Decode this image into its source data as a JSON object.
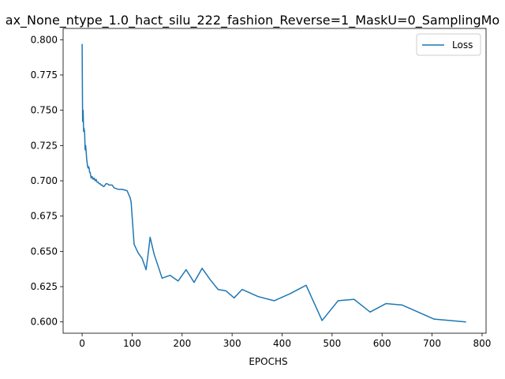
{
  "chart_data": {
    "type": "line",
    "title": "ax_None_ntype_1.0_hact_silu_222_fashion_Reverse=1_MaskU=0_SamplingMo",
    "xlabel": "EPOCHS",
    "ylabel": "",
    "xlim": [
      -38,
      808
    ],
    "ylim": [
      0.592,
      0.808
    ],
    "xticks": [
      0,
      100,
      200,
      300,
      400,
      500,
      600,
      700,
      800
    ],
    "xtick_labels": [
      "0",
      "100",
      "200",
      "300",
      "400",
      "500",
      "600",
      "700",
      "800"
    ],
    "yticks": [
      0.6,
      0.625,
      0.65,
      0.675,
      0.7,
      0.725,
      0.75,
      0.775,
      0.8
    ],
    "ytick_labels": [
      "0.600",
      "0.625",
      "0.650",
      "0.675",
      "0.700",
      "0.725",
      "0.750",
      "0.775",
      "0.800"
    ],
    "grid": false,
    "legend_position": "top-right",
    "series": [
      {
        "name": "Loss",
        "color": "#1f77b4",
        "x": [
          0,
          1,
          2,
          3,
          4,
          5,
          6,
          7,
          8,
          9,
          10,
          11,
          12,
          13,
          14,
          15,
          16,
          17,
          18,
          20,
          22,
          24,
          26,
          28,
          30,
          32,
          34,
          36,
          38,
          40,
          42,
          44,
          46,
          48,
          50,
          54,
          58,
          60,
          64,
          72,
          80,
          90,
          96,
          98,
          100,
          104,
          112,
          120,
          128,
          132,
          136,
          144,
          160,
          176,
          192,
          208,
          224,
          240,
          256,
          272,
          288,
          304,
          320,
          352,
          384,
          416,
          448,
          480,
          512,
          544,
          576,
          608,
          640,
          672,
          704,
          768
        ],
        "values": [
          0.797,
          0.742,
          0.75,
          0.735,
          0.737,
          0.734,
          0.722,
          0.725,
          0.721,
          0.716,
          0.713,
          0.71,
          0.709,
          0.71,
          0.709,
          0.706,
          0.706,
          0.704,
          0.702,
          0.703,
          0.701,
          0.702,
          0.7,
          0.701,
          0.699,
          0.699,
          0.698,
          0.698,
          0.697,
          0.697,
          0.696,
          0.696,
          0.697,
          0.698,
          0.698,
          0.697,
          0.697,
          0.697,
          0.695,
          0.694,
          0.694,
          0.693,
          0.688,
          0.685,
          0.675,
          0.655,
          0.649,
          0.645,
          0.637,
          0.648,
          0.66,
          0.648,
          0.631,
          0.633,
          0.629,
          0.637,
          0.628,
          0.638,
          0.63,
          0.623,
          0.622,
          0.617,
          0.623,
          0.618,
          0.615,
          0.62,
          0.626,
          0.601,
          0.615,
          0.616,
          0.607,
          0.613,
          0.612,
          0.607,
          0.602,
          0.6
        ]
      }
    ]
  }
}
